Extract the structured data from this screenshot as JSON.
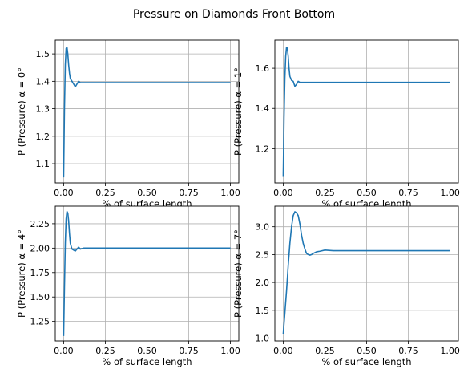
{
  "figure": {
    "title": "Pressure on Diamonds Front Bottom"
  },
  "chart_data": [
    {
      "type": "line",
      "xlabel": "% of surface length",
      "ylabel": "P (Pressure) α = 0°",
      "xlim": [
        -0.05,
        1.05
      ],
      "ylim": [
        1.03,
        1.55
      ],
      "xticks": [
        0.0,
        0.25,
        0.5,
        0.75,
        1.0
      ],
      "xtick_labels": [
        "0.00",
        "0.25",
        "0.50",
        "0.75",
        "1.00"
      ],
      "yticks": [
        1.1,
        1.2,
        1.3,
        1.4,
        1.5
      ],
      "ytick_labels": [
        "1.1",
        "1.2",
        "1.3",
        "1.4",
        "1.5"
      ],
      "grid": true,
      "color": "#1f77b4",
      "x": [
        0.0,
        0.005,
        0.01,
        0.015,
        0.02,
        0.025,
        0.03,
        0.035,
        0.04,
        0.05,
        0.06,
        0.07,
        0.08,
        0.09,
        0.1,
        0.12,
        0.15,
        0.2,
        0.25,
        0.3,
        0.4,
        0.5,
        0.6,
        0.7,
        0.8,
        0.9,
        1.0
      ],
      "y": [
        1.05,
        1.3,
        1.46,
        1.52,
        1.525,
        1.5,
        1.46,
        1.43,
        1.41,
        1.4,
        1.39,
        1.38,
        1.39,
        1.4,
        1.395,
        1.395,
        1.395,
        1.395,
        1.395,
        1.395,
        1.395,
        1.395,
        1.395,
        1.395,
        1.395,
        1.395,
        1.395
      ]
    },
    {
      "type": "line",
      "xlabel": "% of surface length",
      "ylabel": "P (Pressure) α = 1°",
      "xlim": [
        -0.05,
        1.05
      ],
      "ylim": [
        1.03,
        1.74
      ],
      "xticks": [
        0.0,
        0.25,
        0.5,
        0.75,
        1.0
      ],
      "xtick_labels": [
        "0.00",
        "0.25",
        "0.50",
        "0.75",
        "1.00"
      ],
      "yticks": [
        1.2,
        1.4,
        1.6
      ],
      "ytick_labels": [
        "1.2",
        "1.4",
        "1.6"
      ],
      "grid": true,
      "color": "#1f77b4",
      "x": [
        0.0,
        0.005,
        0.01,
        0.015,
        0.02,
        0.025,
        0.03,
        0.035,
        0.04,
        0.05,
        0.06,
        0.07,
        0.08,
        0.09,
        0.1,
        0.12,
        0.15,
        0.2,
        0.25,
        0.3,
        0.4,
        0.5,
        0.6,
        0.7,
        0.8,
        0.9,
        1.0
      ],
      "y": [
        1.06,
        1.35,
        1.55,
        1.66,
        1.705,
        1.7,
        1.66,
        1.6,
        1.56,
        1.54,
        1.535,
        1.51,
        1.52,
        1.535,
        1.53,
        1.53,
        1.53,
        1.53,
        1.53,
        1.53,
        1.53,
        1.53,
        1.53,
        1.53,
        1.53,
        1.53,
        1.53
      ]
    },
    {
      "type": "line",
      "xlabel": "% of surface length",
      "ylabel": "P (Pressure) α = 4°",
      "xlim": [
        -0.05,
        1.05
      ],
      "ylim": [
        1.05,
        2.43
      ],
      "xticks": [
        0.0,
        0.25,
        0.5,
        0.75,
        1.0
      ],
      "xtick_labels": [
        "0.00",
        "0.25",
        "0.50",
        "0.75",
        "1.00"
      ],
      "yticks": [
        1.25,
        1.5,
        1.75,
        2.0,
        2.25
      ],
      "ytick_labels": [
        "1.25",
        "1.50",
        "1.75",
        "2.00",
        "2.25"
      ],
      "grid": true,
      "color": "#1f77b4",
      "x": [
        0.0,
        0.005,
        0.01,
        0.015,
        0.02,
        0.025,
        0.03,
        0.035,
        0.04,
        0.05,
        0.06,
        0.07,
        0.08,
        0.09,
        0.1,
        0.12,
        0.15,
        0.2,
        0.25,
        0.3,
        0.4,
        0.5,
        0.6,
        0.7,
        0.8,
        0.9,
        1.0
      ],
      "y": [
        1.1,
        1.6,
        2.05,
        2.3,
        2.375,
        2.36,
        2.28,
        2.15,
        2.05,
        1.99,
        1.98,
        1.97,
        1.99,
        2.01,
        1.99,
        2.0,
        2.0,
        2.0,
        2.0,
        2.0,
        2.0,
        2.0,
        2.0,
        2.0,
        2.0,
        2.0,
        2.0
      ]
    },
    {
      "type": "line",
      "xlabel": "% of surface length",
      "ylabel": "P (Pressure) α = 7°",
      "xlim": [
        -0.05,
        1.05
      ],
      "ylim": [
        0.95,
        3.37
      ],
      "xticks": [
        0.0,
        0.25,
        0.5,
        0.75,
        1.0
      ],
      "xtick_labels": [
        "0.00",
        "0.25",
        "0.50",
        "0.75",
        "1.00"
      ],
      "yticks": [
        1.0,
        1.5,
        2.0,
        2.5,
        3.0
      ],
      "ytick_labels": [
        "1.0",
        "1.5",
        "2.0",
        "2.5",
        "3.0"
      ],
      "grid": true,
      "color": "#1f77b4",
      "x": [
        0.0,
        0.01,
        0.02,
        0.03,
        0.04,
        0.05,
        0.06,
        0.07,
        0.08,
        0.09,
        0.1,
        0.11,
        0.12,
        0.13,
        0.14,
        0.15,
        0.16,
        0.17,
        0.18,
        0.2,
        0.22,
        0.25,
        0.3,
        0.35,
        0.4,
        0.5,
        0.6,
        0.7,
        0.8,
        0.9,
        1.0
      ],
      "y": [
        1.07,
        1.45,
        1.85,
        2.3,
        2.7,
        3.0,
        3.2,
        3.27,
        3.25,
        3.2,
        3.05,
        2.85,
        2.7,
        2.6,
        2.52,
        2.5,
        2.49,
        2.5,
        2.52,
        2.55,
        2.56,
        2.58,
        2.57,
        2.57,
        2.57,
        2.57,
        2.57,
        2.57,
        2.57,
        2.57,
        2.57
      ]
    }
  ]
}
